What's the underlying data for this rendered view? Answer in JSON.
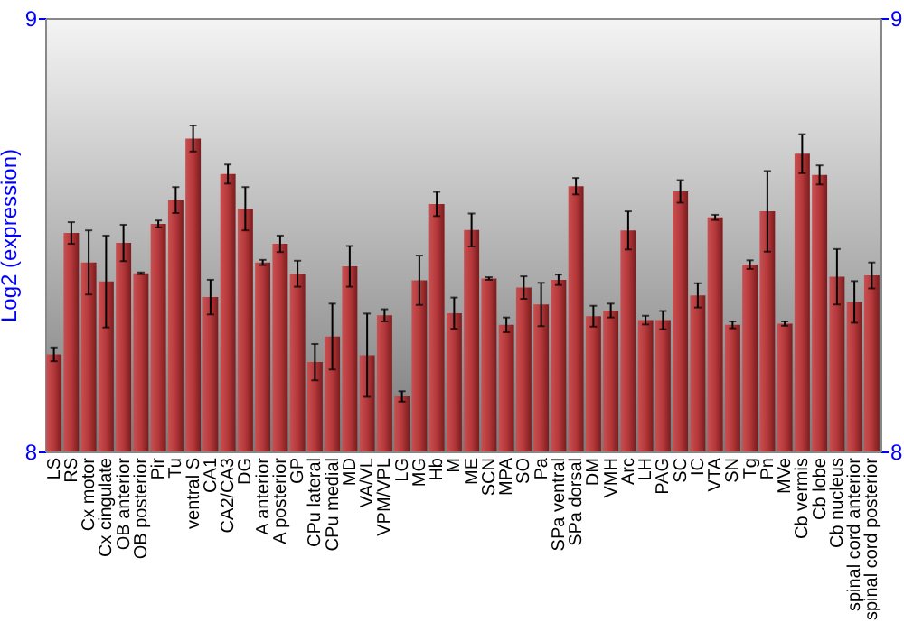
{
  "chart_data": {
    "type": "bar",
    "ylabel": "Log2 (expression)",
    "categories": [
      "LS",
      "RS",
      "Cx motor",
      "Cx cingulate",
      "OB anterior",
      "OB posterior",
      "Pir",
      "Tu",
      "ventral S",
      "CA1",
      "CA2/CA3",
      "DG",
      "A anterior",
      "A posterior",
      "GP",
      "CPu lateral",
      "CPu medial",
      "MD",
      "VA/VL",
      "VPM/VPL",
      "LG",
      "MG",
      "Hb",
      "M",
      "ME",
      "SCN",
      "MPA",
      "SO",
      "Pa",
      "SPa ventral",
      "SPa dorsal",
      "DM",
      "VMH",
      "Arc",
      "LH",
      "PAG",
      "SC",
      "IC",
      "VTA",
      "SN",
      "Tg",
      "Pn",
      "MVe",
      "Cb vermis",
      "Cb lobe",
      "Cb nucleus",
      "spinal cord anterior",
      "spinal cord posterior"
    ],
    "values": [
      8.224,
      8.504,
      8.436,
      8.392,
      8.481,
      8.411,
      8.525,
      8.58,
      8.722,
      8.356,
      8.64,
      8.56,
      8.436,
      8.479,
      8.41,
      8.206,
      8.265,
      8.427,
      8.222,
      8.314,
      8.127,
      8.395,
      8.571,
      8.319,
      8.511,
      8.399,
      8.292,
      8.378,
      8.339,
      8.396,
      8.612,
      8.312,
      8.325,
      8.51,
      8.303,
      8.303,
      8.6,
      8.36,
      8.54,
      8.292,
      8.431,
      8.554,
      8.295,
      8.687,
      8.638,
      8.403,
      8.345,
      8.406
    ],
    "errors": [
      0.016,
      0.025,
      0.074,
      0.106,
      0.042,
      0.002,
      0.008,
      0.03,
      0.03,
      0.04,
      0.022,
      0.05,
      0.006,
      0.019,
      0.03,
      0.042,
      0.076,
      0.047,
      0.096,
      0.014,
      0.012,
      0.057,
      0.028,
      0.036,
      0.038,
      0.003,
      0.017,
      0.026,
      0.05,
      0.012,
      0.019,
      0.024,
      0.016,
      0.044,
      0.01,
      0.021,
      0.026,
      0.028,
      0.006,
      0.008,
      0.01,
      0.093,
      0.005,
      0.045,
      0.022,
      0.064,
      0.048,
      0.03
    ],
    "color": "#b5383a",
    "ylim": [
      8,
      9
    ],
    "yticks": [
      8,
      9
    ],
    "y2lim": [
      8,
      9
    ],
    "y2ticks": [
      8,
      9
    ],
    "grid": false
  }
}
